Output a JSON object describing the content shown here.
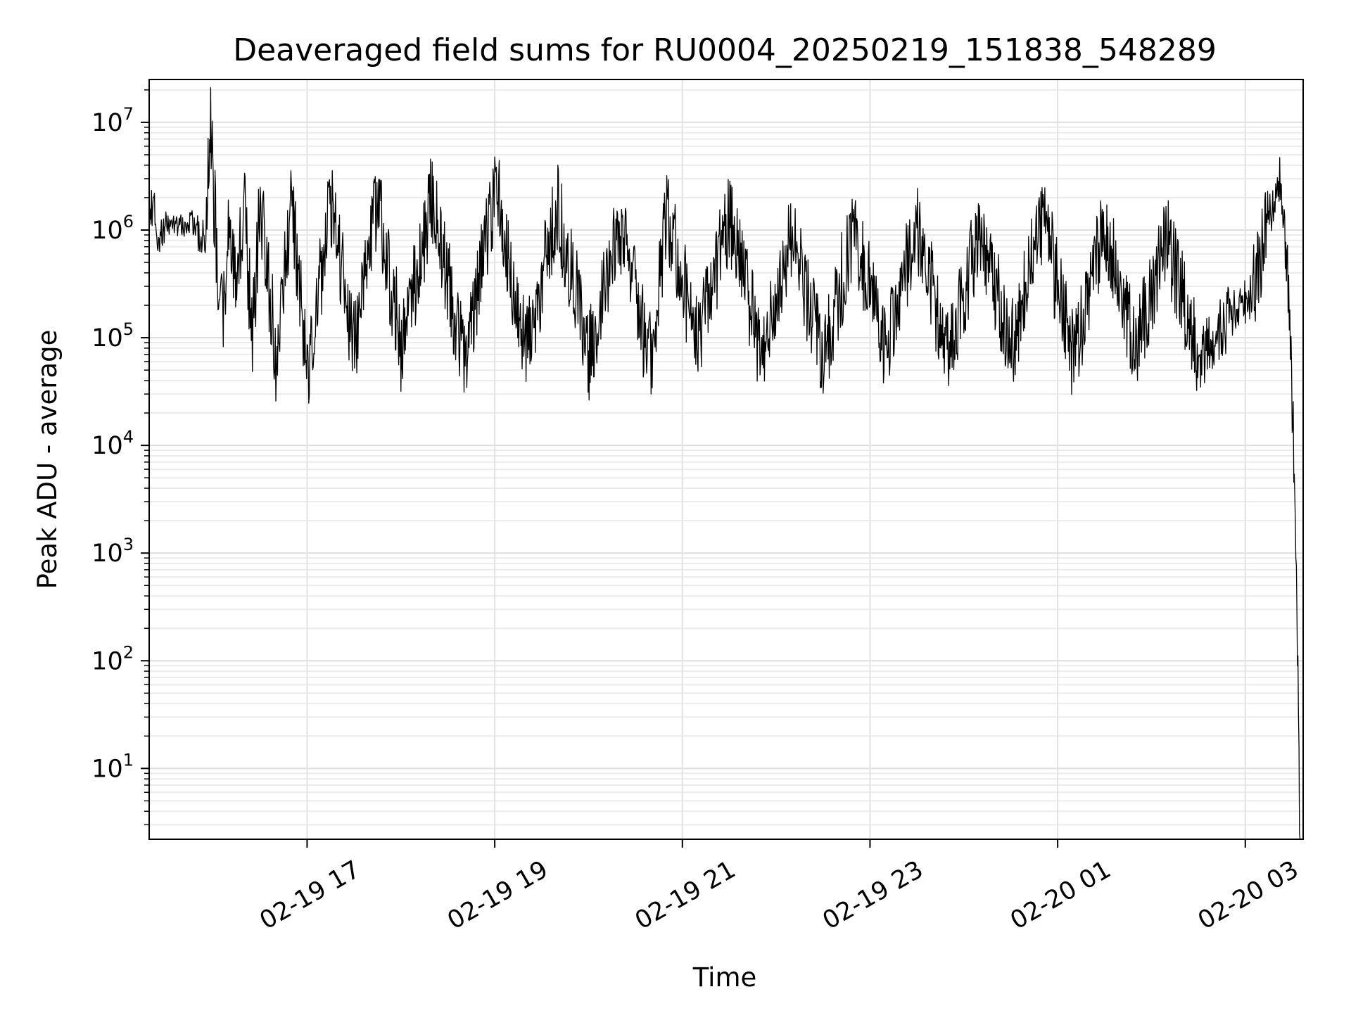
{
  "chart_data": {
    "type": "line",
    "title": "Deaveraged field sums for RU0004_20250219_151838_548289",
    "xlabel": "Time",
    "ylabel": "Peak ADU - average",
    "x_range": [
      "2025-02-19 15:19",
      "2025-02-20 03:37"
    ],
    "yscale": "log",
    "ylim": [
      2.2,
      25000000
    ],
    "grid": {
      "x_major": true,
      "y_major": true,
      "y_minor": true
    },
    "x_ticks": [
      {
        "value": "2025-02-19 17:00",
        "label": "02-19 17"
      },
      {
        "value": "2025-02-19 19:00",
        "label": "02-19 19"
      },
      {
        "value": "2025-02-19 21:00",
        "label": "02-19 21"
      },
      {
        "value": "2025-02-19 23:00",
        "label": "02-19 23"
      },
      {
        "value": "2025-02-20 01:00",
        "label": "02-20 01"
      },
      {
        "value": "2025-02-20 03:00",
        "label": "02-20 03"
      }
    ],
    "y_ticks": [
      {
        "value": 10,
        "base": "10",
        "exp": "1"
      },
      {
        "value": 100,
        "base": "10",
        "exp": "2"
      },
      {
        "value": 1000,
        "base": "10",
        "exp": "3"
      },
      {
        "value": 10000,
        "base": "10",
        "exp": "4"
      },
      {
        "value": 100000,
        "base": "10",
        "exp": "5"
      },
      {
        "value": 1000000,
        "base": "10",
        "exp": "6"
      },
      {
        "value": 10000000,
        "base": "10",
        "exp": "7"
      }
    ],
    "series": [
      {
        "color": "#000000",
        "points": [
          [
            "2025-02-19 15:19",
            1900000
          ],
          [
            "2025-02-19 15:22",
            1300000
          ],
          [
            "2025-02-19 15:25",
            800000
          ],
          [
            "2025-02-19 15:30",
            1100000
          ],
          [
            "2025-02-19 15:35",
            1150000
          ],
          [
            "2025-02-19 15:40",
            1050000
          ],
          [
            "2025-02-19 15:45",
            1200000
          ],
          [
            "2025-02-19 15:50",
            1000000
          ],
          [
            "2025-02-19 15:53",
            600000
          ],
          [
            "2025-02-19 15:56",
            1500000
          ],
          [
            "2025-02-19 15:58",
            11000000
          ],
          [
            "2025-02-19 16:00",
            2000000
          ],
          [
            "2025-02-19 16:03",
            400000
          ],
          [
            "2025-02-19 16:06",
            120000
          ],
          [
            "2025-02-19 16:10",
            900000
          ],
          [
            "2025-02-19 16:15",
            300000
          ],
          [
            "2025-02-19 16:20",
            1400000
          ],
          [
            "2025-02-19 16:25",
            90000
          ],
          [
            "2025-02-19 16:30",
            1600000
          ],
          [
            "2025-02-19 16:40",
            70000
          ],
          [
            "2025-02-19 16:50",
            1700000
          ],
          [
            "2025-02-19 17:00",
            45000
          ],
          [
            "2025-02-19 17:15",
            1600000
          ],
          [
            "2025-02-19 17:30",
            80000
          ],
          [
            "2025-02-19 17:45",
            1800000
          ],
          [
            "2025-02-19 18:00",
            70000
          ],
          [
            "2025-02-19 18:20",
            1700000
          ],
          [
            "2025-02-19 18:40",
            60000
          ],
          [
            "2025-02-19 19:00",
            1800000
          ],
          [
            "2025-02-19 19:20",
            70000
          ],
          [
            "2025-02-19 19:40",
            1500000
          ],
          [
            "2025-02-19 20:00",
            60000
          ],
          [
            "2025-02-19 20:20",
            900000
          ],
          [
            "2025-02-19 20:40",
            60000
          ],
          [
            "2025-02-19 20:50",
            1400000
          ],
          [
            "2025-02-19 21:10",
            80000
          ],
          [
            "2025-02-19 21:30",
            1300000
          ],
          [
            "2025-02-19 21:50",
            70000
          ],
          [
            "2025-02-19 22:10",
            800000
          ],
          [
            "2025-02-19 22:30",
            60000
          ],
          [
            "2025-02-19 22:50",
            900000
          ],
          [
            "2025-02-19 23:10",
            70000
          ],
          [
            "2025-02-19 23:30",
            1000000
          ],
          [
            "2025-02-19 23:50",
            60000
          ],
          [
            "2025-02-20 00:10",
            900000
          ],
          [
            "2025-02-20 00:30",
            70000
          ],
          [
            "2025-02-20 00:50",
            1200000
          ],
          [
            "2025-02-20 01:10",
            60000
          ],
          [
            "2025-02-20 01:30",
            1000000
          ],
          [
            "2025-02-20 01:50",
            70000
          ],
          [
            "2025-02-20 02:10",
            800000
          ],
          [
            "2025-02-20 02:30",
            60000
          ],
          [
            "2025-02-20 02:50",
            150000
          ],
          [
            "2025-02-20 03:05",
            250000
          ],
          [
            "2025-02-20 03:15",
            1300000
          ],
          [
            "2025-02-20 03:22",
            2000000
          ],
          [
            "2025-02-20 03:27",
            600000
          ],
          [
            "2025-02-20 03:30",
            30000
          ],
          [
            "2025-02-20 03:32",
            800
          ],
          [
            "2025-02-20 03:34",
            40
          ],
          [
            "2025-02-20 03:35",
            2.2
          ]
        ]
      }
    ]
  }
}
